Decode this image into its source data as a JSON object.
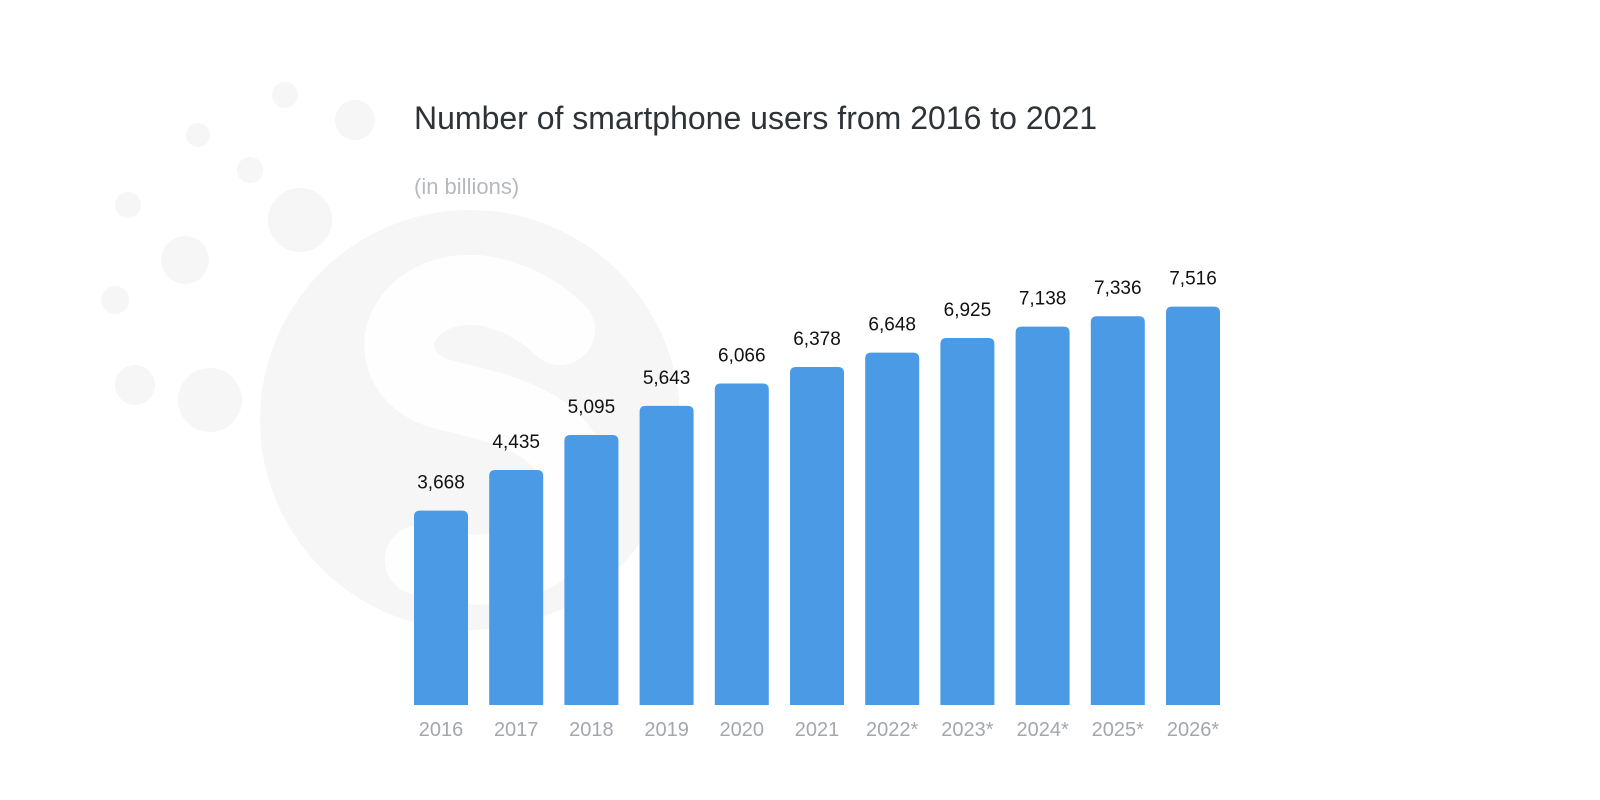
{
  "chart_data": {
    "type": "bar",
    "title": "Number of smartphone users from 2016 to 2021",
    "subtitle": "(in billions)",
    "categories": [
      "2016",
      "2017",
      "2018",
      "2019",
      "2020",
      "2021",
      "2022*",
      "2023*",
      "2024*",
      "2025*",
      "2026*"
    ],
    "values": [
      3.668,
      4.435,
      5.095,
      5.643,
      6.066,
      6.378,
      6.648,
      6.925,
      7.138,
      7.336,
      7.516
    ],
    "value_labels": [
      "3,668",
      "4,435",
      "5,095",
      "5,643",
      "6,066",
      "6,378",
      "6,648",
      "6,925",
      "7,138",
      "7,336",
      "7,516"
    ],
    "xlabel": "",
    "ylabel": "",
    "ylim": [
      0,
      8
    ],
    "grid": false,
    "legend": "none",
    "colors": {
      "bar": "#4a9ae5",
      "title": "#2e3338",
      "subtitle": "#b5b9bf",
      "tick": "#a3a7ad",
      "value": "#111111"
    }
  }
}
